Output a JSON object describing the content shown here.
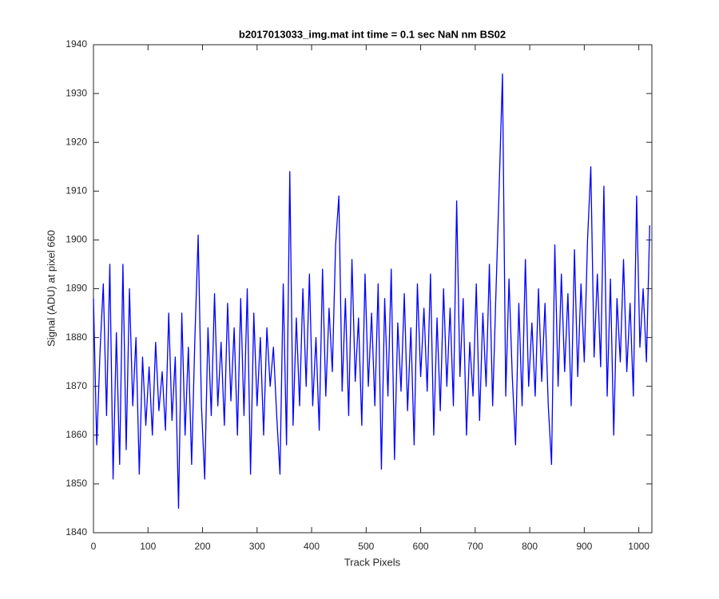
{
  "chart_data": {
    "type": "line",
    "title": "b2017013033_img.mat int time = 0.1 sec  NaN nm BS02",
    "x_label": "Track Pixels",
    "y_label": "Signal (ADU) at pixel 660",
    "color": "#0000ff",
    "xlim": [
      0,
      1024
    ],
    "xticks": [
      0,
      100,
      200,
      300,
      400,
      500,
      600,
      700,
      800,
      900,
      1000
    ],
    "ylim": [
      1840,
      1940
    ],
    "yticks": [
      1840,
      1850,
      1860,
      1870,
      1880,
      1890,
      1900,
      1910,
      1920,
      1930,
      1940
    ],
    "x": [
      0,
      6,
      12,
      18,
      24,
      30,
      36,
      42,
      48,
      54,
      60,
      66,
      72,
      78,
      84,
      90,
      96,
      102,
      108,
      114,
      120,
      126,
      132,
      138,
      144,
      150,
      156,
      162,
      168,
      174,
      180,
      186,
      192,
      198,
      204,
      210,
      216,
      222,
      228,
      234,
      240,
      246,
      252,
      258,
      264,
      270,
      276,
      282,
      288,
      294,
      300,
      306,
      312,
      318,
      324,
      330,
      336,
      342,
      348,
      354,
      360,
      366,
      372,
      378,
      384,
      390,
      396,
      402,
      408,
      414,
      420,
      426,
      432,
      438,
      444,
      450,
      456,
      462,
      468,
      474,
      480,
      486,
      492,
      498,
      504,
      510,
      516,
      522,
      528,
      534,
      540,
      546,
      552,
      558,
      564,
      570,
      576,
      582,
      588,
      594,
      600,
      606,
      612,
      618,
      624,
      630,
      636,
      642,
      648,
      654,
      660,
      666,
      672,
      678,
      684,
      690,
      696,
      702,
      708,
      714,
      720,
      726,
      732,
      738,
      744,
      750,
      756,
      762,
      768,
      774,
      780,
      786,
      792,
      798,
      804,
      810,
      816,
      822,
      828,
      834,
      840,
      846,
      852,
      858,
      864,
      870,
      876,
      882,
      888,
      894,
      900,
      906,
      912,
      918,
      924,
      930,
      936,
      942,
      948,
      954,
      960,
      966,
      972,
      978,
      984,
      990,
      996,
      1002,
      1008,
      1014,
      1020
    ],
    "values": [
      1888,
      1858,
      1877,
      1891,
      1864,
      1895,
      1851,
      1881,
      1854,
      1895,
      1857,
      1890,
      1866,
      1880,
      1852,
      1876,
      1862,
      1874,
      1860,
      1879,
      1865,
      1873,
      1861,
      1885,
      1863,
      1876,
      1845,
      1885,
      1860,
      1878,
      1854,
      1880,
      1901,
      1866,
      1851,
      1882,
      1864,
      1889,
      1866,
      1879,
      1862,
      1887,
      1867,
      1882,
      1860,
      1888,
      1864,
      1890,
      1852,
      1885,
      1866,
      1880,
      1860,
      1882,
      1870,
      1878,
      1864,
      1852,
      1891,
      1858,
      1914,
      1862,
      1884,
      1866,
      1890,
      1870,
      1893,
      1866,
      1880,
      1861,
      1894,
      1868,
      1886,
      1873,
      1899,
      1909,
      1869,
      1888,
      1864,
      1896,
      1871,
      1884,
      1862,
      1893,
      1870,
      1885,
      1866,
      1891,
      1853,
      1888,
      1868,
      1894,
      1855,
      1883,
      1869,
      1889,
      1865,
      1882,
      1858,
      1891,
      1872,
      1886,
      1869,
      1893,
      1860,
      1884,
      1865,
      1890,
      1870,
      1886,
      1866,
      1908,
      1872,
      1888,
      1860,
      1879,
      1868,
      1891,
      1863,
      1885,
      1870,
      1895,
      1866,
      1889,
      1911,
      1934,
      1868,
      1892,
      1872,
      1858,
      1887,
      1866,
      1896,
      1870,
      1883,
      1868,
      1890,
      1871,
      1887,
      1866,
      1854,
      1899,
      1870,
      1893,
      1873,
      1889,
      1866,
      1898,
      1872,
      1891,
      1875,
      1900,
      1915,
      1876,
      1893,
      1874,
      1911,
      1868,
      1892,
      1860,
      1888,
      1875,
      1896,
      1873,
      1887,
      1868,
      1909,
      1878,
      1890,
      1875,
      1903
    ]
  }
}
